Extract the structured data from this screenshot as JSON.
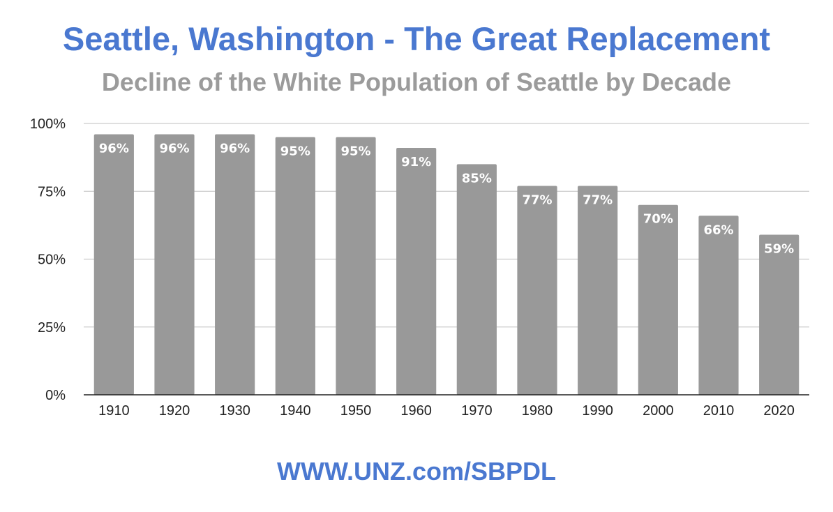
{
  "chart_data": {
    "type": "bar",
    "title": "Seattle, Washington - The Great Replacement",
    "subtitle": "Decline of the White Population of Seattle by Decade",
    "categories": [
      "1910",
      "1920",
      "1930",
      "1940",
      "1950",
      "1960",
      "1970",
      "1980",
      "1990",
      "2000",
      "2010",
      "2020"
    ],
    "values": [
      96,
      96,
      96,
      95,
      95,
      91,
      85,
      77,
      77,
      70,
      66,
      59
    ],
    "data_labels": [
      "96%",
      "96%",
      "96%",
      "95%",
      "95%",
      "91%",
      "85%",
      "77%",
      "77%",
      "70%",
      "66%",
      "59%"
    ],
    "ylim": [
      0,
      100
    ],
    "y_ticks": [
      0,
      25,
      50,
      75,
      100
    ],
    "y_tick_labels": [
      "0%",
      "25%",
      "50%",
      "75%",
      "100%"
    ],
    "xlabel": "",
    "ylabel": "",
    "grid": true,
    "legend": "none",
    "colors": {
      "bar": "#999999",
      "bar_label": "#ffffff",
      "gridline": "#cccccc",
      "axis": "#222222",
      "title": "#4a78d0",
      "subtitle": "#9b9b9b",
      "footer": "#4a78d0"
    }
  },
  "footer": "WWW.UNZ.com/SBPDL"
}
